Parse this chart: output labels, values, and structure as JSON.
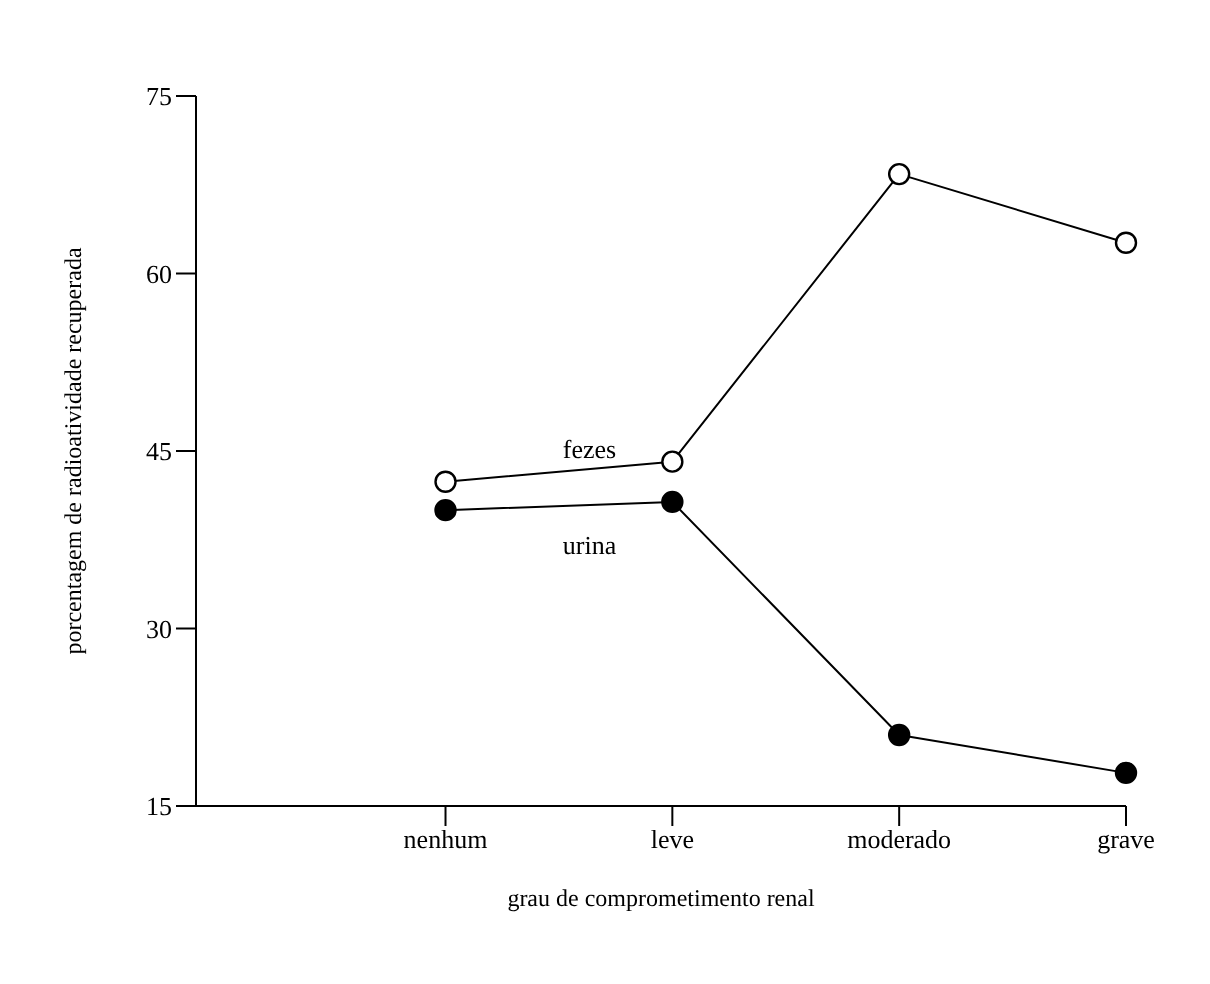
{
  "chart_data": {
    "type": "line",
    "xlabel": "grau de comprometimento renal",
    "ylabel": "porcentagem de radioatividade recuperada",
    "categories": [
      "nenhum",
      "leve",
      "moderado",
      "grave"
    ],
    "series": [
      {
        "name": "fezes",
        "color": "#000000",
        "values": [
          42.4,
          44.1,
          68.4,
          62.6
        ]
      },
      {
        "name": "urina",
        "color": "#000000",
        "values": [
          40,
          40.7,
          21,
          17.8
        ]
      }
    ],
    "ylim": [
      15,
      75
    ],
    "yticks": [
      15,
      30,
      45,
      60,
      75
    ],
    "marker": "circle",
    "line_style": "solid",
    "grid": false,
    "legend": false
  }
}
